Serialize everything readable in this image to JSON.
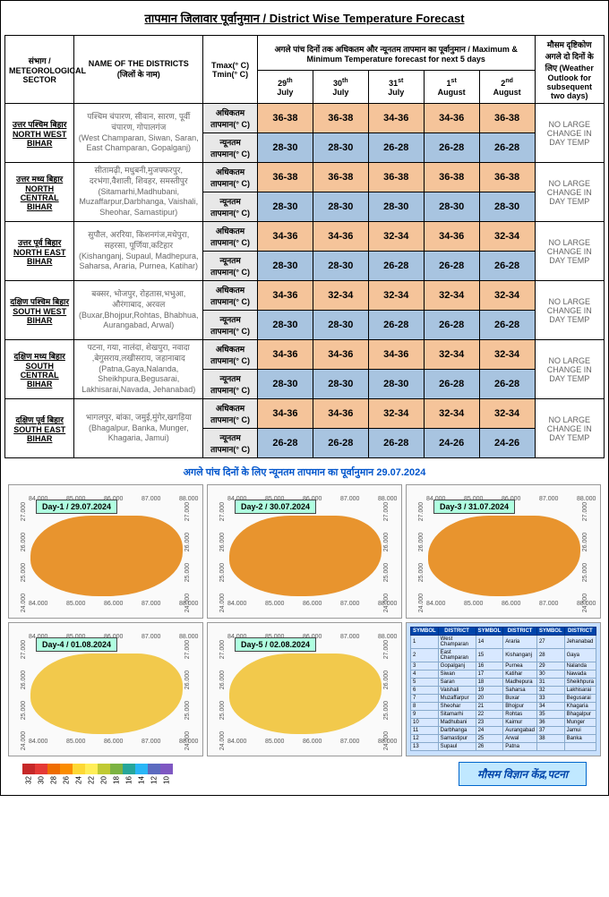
{
  "title": "तापमान जिलावार पूर्वानुमान / District Wise Temperature Forecast",
  "band": "अगले पांच दिनों के लिए न्यूनतम तापमान का पूर्वानुमान 29.07.2024",
  "colHeaders": {
    "sector": "संभाग / METEOROLOGICAL SECTOR",
    "district": "NAME OF THE DISTRICTS (जिलों के नाम)",
    "tmax": "Tmax(° C) Tmin(° C)",
    "next5": "अगले पांच दिनों तक अधिकतम और न्यूनतम तापमान का पूर्वानुमान / Maximum & Minimum Temperature forecast for next 5 days",
    "outlook": "मौसम दृष्टिकोण अगले दो दिनों के लिए (Weather Outlook for subsequent two days)"
  },
  "dates": [
    "29<sup>th</sup><br>July",
    "30<sup>th</sup><br>July",
    "31<sup>st</sup><br>July",
    "1<sup>st</sup><br>August",
    "2<sup>nd</sup><br>August"
  ],
  "rowLabelMax": "अधिकतम तापमान(° C)",
  "rowLabelMin": "न्यूनतम तापमान(° C)",
  "outlookText": "NO LARGE CHANGE IN DAY TEMP",
  "rows": [
    {
      "sectorHi": "उत्तर पश्चिम बिहार",
      "sectorEn": "NORTH WEST BIHAR",
      "distHi": "पश्चिम चंपारण, सीवान, सारण, पूर्वी चंपारण, गोपालगंज",
      "distEn": "(West Champaran, Siwan, Saran, East Champaran, Gopalganj)",
      "max": [
        "36-38",
        "36-38",
        "34-36",
        "34-36",
        "36-38"
      ],
      "min": [
        "28-30",
        "28-30",
        "26-28",
        "26-28",
        "26-28"
      ]
    },
    {
      "sectorHi": "उत्तर मध्य बिहार",
      "sectorEn": "NORTH CENTRAL BIHAR",
      "distHi": "सीतामढ़ी, मधुबनी,मुजफ्फरपुर, दरभंगा,वैशाली, शिवहर, समस्तीपुर",
      "distEn": "(Sitamarhi,Madhubani, Muzaffarpur,Darbhanga, Vaishali, Sheohar, Samastipur)",
      "max": [
        "36-38",
        "36-38",
        "36-38",
        "36-38",
        "36-38"
      ],
      "min": [
        "28-30",
        "28-30",
        "28-30",
        "28-30",
        "28-30"
      ]
    },
    {
      "sectorHi": "उत्तर पूर्व बिहार",
      "sectorEn": "NORTH EAST BIHAR",
      "distHi": "सुपौल, अररिया, किशनगंज,मधेपुरा, सहरसा, पूर्णिया,कटिहार",
      "distEn": "(Kishanganj, Supaul, Madhepura, Saharsa, Araria, Purnea, Katihar)",
      "max": [
        "34-36",
        "34-36",
        "32-34",
        "34-36",
        "32-34"
      ],
      "min": [
        "28-30",
        "28-30",
        "26-28",
        "26-28",
        "26-28"
      ]
    },
    {
      "sectorHi": "दक्षिण पश्चिम बिहार",
      "sectorEn": "SOUTH WEST BIHAR",
      "distHi": "बक्सर, भोजपुर, रोहतास,भभुआ, औरंगाबाद, अरवल",
      "distEn": "(Buxar,Bhojpur,Rohtas, Bhabhua, Aurangabad, Arwal)",
      "max": [
        "34-36",
        "32-34",
        "32-34",
        "32-34",
        "32-34"
      ],
      "min": [
        "28-30",
        "28-30",
        "26-28",
        "26-28",
        "26-28"
      ]
    },
    {
      "sectorHi": "दक्षिण मध्य बिहार",
      "sectorEn": "SOUTH CENTRAL BIHAR",
      "distHi": "पटना, गया, नालंदा, शेखपुरा, नवादा ,बेगुसराय,लखीसराय, जहानाबाद",
      "distEn": "(Patna,Gaya,Nalanda, Sheikhpura,Begusarai, Lakhisarai,Navada, Jehanabad)",
      "max": [
        "34-36",
        "34-36",
        "34-36",
        "32-34",
        "32-34"
      ],
      "min": [
        "28-30",
        "28-30",
        "28-30",
        "26-28",
        "26-28"
      ]
    },
    {
      "sectorHi": "दक्षिण पूर्व बिहार",
      "sectorEn": "SOUTH EAST BIHAR",
      "distHi": "भागलपुर, बांका, जमुई,मुंगेर,खगड़िया",
      "distEn": "(Bhagalpur, Banka, Munger, Khagaria, Jamui)",
      "max": [
        "34-36",
        "34-36",
        "32-34",
        "32-34",
        "32-34"
      ],
      "min": [
        "26-28",
        "26-28",
        "26-28",
        "24-26",
        "24-26"
      ]
    }
  ],
  "mapTags": [
    "Day-1 / 29.07.2024",
    "Day-2 / 30.07.2024",
    "Day-3 / 31.07.2024",
    "Day-4 / 01.08.2024",
    "Day-5 / 02.08.2024"
  ],
  "axisX": [
    "84.000",
    "85.000",
    "86.000",
    "87.000",
    "88.000"
  ],
  "axisY": [
    "27.000",
    "26.000",
    "25.000",
    "24.000"
  ],
  "legendHdr": [
    "SYMBOL",
    "DISTRICT",
    "SYMBOL",
    "DISTRICT",
    "SYMBOL",
    "DISTRICT"
  ],
  "legend": [
    [
      "1",
      "West Champaran",
      "14",
      "Araria",
      "27",
      "Jehanabad"
    ],
    [
      "2",
      "East Champaran",
      "15",
      "Kishanganj",
      "28",
      "Gaya"
    ],
    [
      "3",
      "Gopalganj",
      "16",
      "Purnea",
      "29",
      "Nalanda"
    ],
    [
      "4",
      "Siwan",
      "17",
      "Katihar",
      "30",
      "Nawada"
    ],
    [
      "5",
      "Saran",
      "18",
      "Madhepura",
      "31",
      "Sheikhpura"
    ],
    [
      "6",
      "Vaishali",
      "19",
      "Saharsa",
      "32",
      "Lakhisarai"
    ],
    [
      "7",
      "Muzaffarpur",
      "20",
      "Buxar",
      "33",
      "Begusarai"
    ],
    [
      "8",
      "Sheohar",
      "21",
      "Bhojpur",
      "34",
      "Khagaria"
    ],
    [
      "9",
      "Sitamarhi",
      "22",
      "Rohtas",
      "35",
      "Bhagalpur"
    ],
    [
      "10",
      "Madhubani",
      "23",
      "Kaimur",
      "36",
      "Munger"
    ],
    [
      "11",
      "Darbhanga",
      "24",
      "Aurangabad",
      "37",
      "Jamui"
    ],
    [
      "12",
      "Samastipur",
      "25",
      "Arwal",
      "38",
      "Banka"
    ],
    [
      "13",
      "Supaul",
      "26",
      "Patna",
      "",
      ""
    ]
  ],
  "cbar": {
    "labels": [
      "32",
      "30",
      "28",
      "26",
      "24",
      "22",
      "20",
      "18",
      "16",
      "14",
      "12",
      "10"
    ],
    "colors": [
      "#c62828",
      "#e53935",
      "#ef6c00",
      "#fb8c00",
      "#fdd835",
      "#ffee58",
      "#c0ca33",
      "#7cb342",
      "#26a69a",
      "#29b6f6",
      "#5c6bc0",
      "#7e57c2"
    ]
  },
  "footer": "मौसम विज्ञान केंद्र,पटना"
}
